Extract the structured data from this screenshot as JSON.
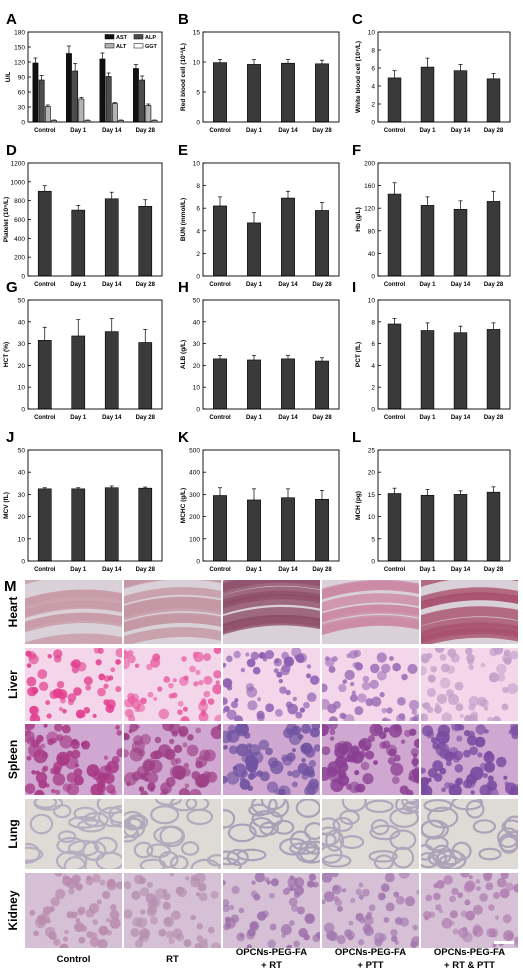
{
  "charts": [
    {
      "panel": "A",
      "type": "bar",
      "categories": [
        "Control",
        "Day 1",
        "Day 14",
        "Day 28"
      ],
      "ylabel": "U/L",
      "ylim": [
        0,
        180
      ],
      "yticks": [
        0,
        30,
        60,
        90,
        120,
        150,
        180
      ],
      "legend": [
        "AST",
        "ALP",
        "ALT",
        "GGT"
      ],
      "series": [
        {
          "name": "AST",
          "color": "#111111",
          "values": [
            118,
            137,
            126,
            107
          ],
          "errors": [
            10,
            15,
            12,
            8
          ]
        },
        {
          "name": "ALP",
          "color": "#4d4d4d",
          "values": [
            84,
            102,
            91,
            84
          ],
          "errors": [
            9,
            15,
            7,
            8
          ]
        },
        {
          "name": "ALT",
          "color": "#b3b3b3",
          "values": [
            31,
            46,
            37,
            33
          ],
          "errors": [
            3,
            3,
            2,
            3
          ]
        },
        {
          "name": "GGT",
          "color": "#ffffff",
          "values": [
            3,
            3,
            3,
            3
          ],
          "errors": [
            1,
            1,
            1,
            1
          ]
        }
      ]
    },
    {
      "panel": "B",
      "type": "bar",
      "categories": [
        "Control",
        "Day 1",
        "Day 14",
        "Day 28"
      ],
      "ylabel": "Red blood cell (10¹²/L)",
      "ylim": [
        0,
        15
      ],
      "yticks": [
        0,
        5,
        10,
        15
      ],
      "series": [
        {
          "color": "#3a3a3a",
          "values": [
            9.9,
            9.6,
            9.8,
            9.7
          ],
          "errors": [
            0.5,
            0.8,
            0.6,
            0.6
          ]
        }
      ]
    },
    {
      "panel": "C",
      "type": "bar",
      "categories": [
        "Control",
        "Day 1",
        "Day 14",
        "Day 28"
      ],
      "ylabel": "White blood cell (10⁹/L)",
      "ylim": [
        0,
        10
      ],
      "yticks": [
        0,
        2,
        4,
        6,
        8,
        10
      ],
      "series": [
        {
          "color": "#3a3a3a",
          "values": [
            4.9,
            6.1,
            5.7,
            4.8
          ],
          "errors": [
            0.8,
            1.0,
            0.7,
            0.6
          ]
        }
      ]
    },
    {
      "panel": "D",
      "type": "bar",
      "categories": [
        "Control",
        "Day 1",
        "Day 14",
        "Day 28"
      ],
      "ylabel": "Platelet (10⁹/L)",
      "ylim": [
        0,
        1200
      ],
      "yticks": [
        0,
        200,
        400,
        600,
        800,
        1000,
        1200
      ],
      "series": [
        {
          "color": "#3a3a3a",
          "values": [
            900,
            700,
            820,
            740
          ],
          "errors": [
            60,
            50,
            70,
            70
          ]
        }
      ]
    },
    {
      "panel": "E",
      "type": "bar",
      "categories": [
        "Control",
        "Day 1",
        "Day 14",
        "Day 28"
      ],
      "ylabel": "BUN (mmol/L)",
      "ylim": [
        0,
        10
      ],
      "yticks": [
        0,
        2,
        4,
        6,
        8,
        10
      ],
      "series": [
        {
          "color": "#3a3a3a",
          "values": [
            6.2,
            4.7,
            6.9,
            5.8
          ],
          "errors": [
            0.8,
            0.9,
            0.6,
            0.7
          ]
        }
      ]
    },
    {
      "panel": "F",
      "type": "bar",
      "categories": [
        "Control",
        "Day 1",
        "Day 14",
        "Day 28"
      ],
      "ylabel": "Hb (g/L)",
      "ylim": [
        0,
        200
      ],
      "yticks": [
        0,
        40,
        80,
        120,
        160,
        200
      ],
      "series": [
        {
          "color": "#3a3a3a",
          "values": [
            145,
            125,
            118,
            132
          ],
          "errors": [
            20,
            15,
            15,
            18
          ]
        }
      ]
    },
    {
      "panel": "G",
      "type": "bar",
      "categories": [
        "Control",
        "Day 1",
        "Day 14",
        "Day 28"
      ],
      "ylabel": "HCT (%)",
      "ylim": [
        0,
        50
      ],
      "yticks": [
        0,
        10,
        20,
        30,
        40,
        50
      ],
      "series": [
        {
          "color": "#3a3a3a",
          "values": [
            31.5,
            33.5,
            35.5,
            30.5
          ],
          "errors": [
            6,
            7.5,
            6,
            6
          ]
        }
      ]
    },
    {
      "panel": "H",
      "type": "bar",
      "categories": [
        "Control",
        "Day 1",
        "Day 14",
        "Day 28"
      ],
      "ylabel": "ALB (g/L)",
      "ylim": [
        0,
        50
      ],
      "yticks": [
        0,
        10,
        20,
        30,
        40,
        50
      ],
      "series": [
        {
          "color": "#3a3a3a",
          "values": [
            23,
            22.5,
            23,
            22
          ],
          "errors": [
            1.5,
            2,
            1.5,
            1.5
          ]
        }
      ]
    },
    {
      "panel": "I",
      "type": "bar",
      "categories": [
        "Control",
        "Day 1",
        "Day 14",
        "Day 28"
      ],
      "ylabel": "PCT (fL)",
      "ylim": [
        0,
        10
      ],
      "yticks": [
        0,
        2,
        4,
        6,
        8,
        10
      ],
      "series": [
        {
          "color": "#3a3a3a",
          "values": [
            7.8,
            7.2,
            7.0,
            7.3
          ],
          "errors": [
            0.5,
            0.7,
            0.6,
            0.6
          ]
        }
      ]
    },
    {
      "panel": "J",
      "type": "bar",
      "categories": [
        "Control",
        "Day 1",
        "Day 14",
        "Day 28"
      ],
      "ylabel": "MCV (fL)",
      "ylim": [
        0,
        50
      ],
      "yticks": [
        0,
        10,
        20,
        30,
        40,
        50
      ],
      "series": [
        {
          "color": "#3a3a3a",
          "values": [
            32.5,
            32.5,
            33,
            32.8
          ],
          "errors": [
            0.5,
            0.5,
            0.8,
            0.5
          ]
        }
      ]
    },
    {
      "panel": "K",
      "type": "bar",
      "categories": [
        "Control",
        "Day 1",
        "Day 14",
        "Day 28"
      ],
      "ylabel": "MCHC (g/L)",
      "ylim": [
        0,
        500
      ],
      "yticks": [
        0,
        100,
        200,
        300,
        400,
        500
      ],
      "series": [
        {
          "color": "#3a3a3a",
          "values": [
            295,
            275,
            285,
            278
          ],
          "errors": [
            35,
            50,
            40,
            40
          ]
        }
      ]
    },
    {
      "panel": "L",
      "type": "bar",
      "categories": [
        "Control",
        "Day 1",
        "Day 14",
        "Day 28"
      ],
      "ylabel": "MCH (pg)",
      "ylim": [
        0,
        25
      ],
      "yticks": [
        0,
        5,
        10,
        15,
        20,
        25
      ],
      "series": [
        {
          "color": "#3a3a3a",
          "values": [
            15.2,
            14.8,
            15.0,
            15.5
          ],
          "errors": [
            1.2,
            1.3,
            0.8,
            1.2
          ]
        }
      ]
    }
  ],
  "histology": {
    "panel": "M",
    "rows": [
      "Heart",
      "Liver",
      "Spleen",
      "Lung",
      "Kidney"
    ],
    "columns": [
      {
        "line1": "Control",
        "line2": ""
      },
      {
        "line1": "RT",
        "line2": ""
      },
      {
        "line1": "OPCNs-PEG-FA",
        "line2": "+ RT"
      },
      {
        "line1": "OPCNs-PEG-FA",
        "line2": "+ PTT"
      },
      {
        "line1": "OPCNs-PEG-FA",
        "line2": "+ RT & PTT"
      }
    ],
    "tissue_colors": {
      "Heart": [
        "#c89aa7",
        "#c496a2",
        "#8f4d68",
        "#cc8aa4",
        "#a8506e"
      ],
      "Liver": [
        "#e23f8e",
        "#e85aa0",
        "#8d5fb1",
        "#9c6cb6",
        "#c0a0c8"
      ],
      "Spleen": [
        "#a83a86",
        "#9e3f86",
        "#6f52a0",
        "#8a3f92",
        "#7a4aa0"
      ],
      "Lung": [
        "#b5aec0",
        "#b0aabb",
        "#a9a1b8",
        "#b1a7bc",
        "#aca3b8"
      ],
      "Kidney": [
        "#b88aae",
        "#b590b0",
        "#9d70a9",
        "#a47ab0",
        "#b07fb0"
      ]
    },
    "background_colors": {
      "Heart": "#d9d1d7",
      "Liver": "#f3d6ea",
      "Spleen": "#cfa7d0",
      "Lung": "#dedbd6",
      "Kidney": "#d6c0d6"
    }
  }
}
